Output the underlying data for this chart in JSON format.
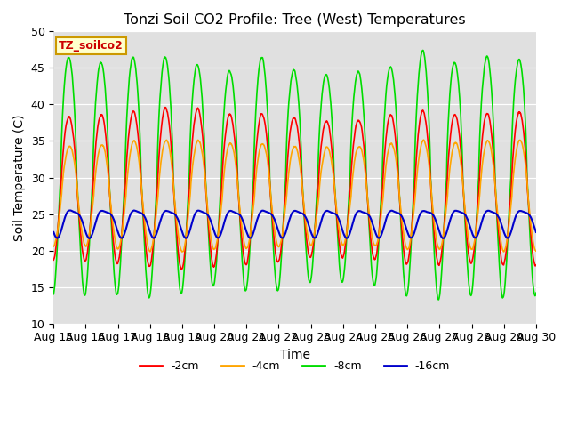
{
  "title": "Tonzi Soil CO2 Profile: Tree (West) Temperatures",
  "xlabel": "Time",
  "ylabel": "Soil Temperature (C)",
  "ylim": [
    10,
    50
  ],
  "xlim_days": [
    0,
    15
  ],
  "tick_labels": [
    "Aug 15",
    "Aug 16",
    "Aug 17",
    "Aug 18",
    "Aug 19",
    "Aug 20",
    "Aug 21",
    "Aug 22",
    "Aug 23",
    "Aug 24",
    "Aug 25",
    "Aug 26",
    "Aug 27",
    "Aug 28",
    "Aug 29",
    "Aug 30"
  ],
  "legend_label": "TZ_soilco2",
  "series": [
    {
      "label": "-2cm",
      "color": "#ff0000"
    },
    {
      "label": "-4cm",
      "color": "#ffa500"
    },
    {
      "label": "-8cm",
      "color": "#00dd00"
    },
    {
      "label": "-16cm",
      "color": "#0000cc"
    }
  ],
  "bg_color": "#e0e0e0",
  "fig_bg": "#ffffff",
  "annotation_box_facecolor": "#ffffcc",
  "annotation_box_edgecolor": "#cc9900",
  "annotation_text_color": "#cc0000",
  "annotation_fontsize": 9
}
